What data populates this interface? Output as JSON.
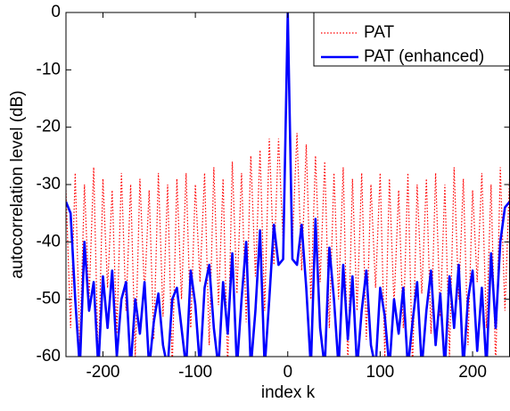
{
  "chart_data": {
    "type": "line",
    "xlabel": "index k",
    "ylabel": "autocorrelation level (dB)",
    "xlim": [
      -240,
      240
    ],
    "ylim": [
      -60,
      0
    ],
    "xticks": [
      -200,
      -100,
      0,
      100,
      200
    ],
    "yticks": [
      0,
      -10,
      -20,
      -30,
      -40,
      -50,
      -60
    ],
    "legend": "upper right",
    "x": [
      -240,
      -235,
      -230,
      -225,
      -220,
      -215,
      -210,
      -205,
      -200,
      -195,
      -190,
      -185,
      -180,
      -175,
      -170,
      -165,
      -160,
      -155,
      -150,
      -145,
      -140,
      -135,
      -130,
      -125,
      -120,
      -115,
      -110,
      -105,
      -100,
      -95,
      -90,
      -85,
      -80,
      -75,
      -70,
      -65,
      -60,
      -55,
      -50,
      -45,
      -40,
      -35,
      -30,
      -25,
      -20,
      -15,
      -10,
      -5,
      0,
      5,
      10,
      15,
      20,
      25,
      30,
      35,
      40,
      45,
      50,
      55,
      60,
      65,
      70,
      75,
      80,
      85,
      90,
      95,
      100,
      105,
      110,
      115,
      120,
      125,
      130,
      135,
      140,
      145,
      150,
      155,
      160,
      165,
      170,
      175,
      180,
      185,
      190,
      195,
      200,
      205,
      210,
      215,
      220,
      225,
      230,
      235,
      240
    ],
    "series": [
      {
        "name": "PAT",
        "color": "#ff0000",
        "style": "dotted",
        "values": [
          -31,
          -55,
          -28,
          -58,
          -30,
          -50,
          -27,
          -62,
          -29,
          -48,
          -31,
          -56,
          -28,
          -52,
          -30,
          -60,
          -29,
          -49,
          -31,
          -57,
          -28,
          -53,
          -30,
          -62,
          -29,
          -50,
          -28,
          -55,
          -30,
          -47,
          -28,
          -58,
          -27,
          -51,
          -29,
          -62,
          -26,
          -49,
          -28,
          -54,
          -25,
          -46,
          -24,
          -52,
          -22,
          -44,
          -22,
          -40,
          0,
          -40,
          -21,
          -45,
          -23,
          -50,
          -25,
          -47,
          -26,
          -55,
          -28,
          -50,
          -27,
          -62,
          -29,
          -52,
          -28,
          -57,
          -30,
          -48,
          -28,
          -60,
          -29,
          -51,
          -31,
          -55,
          -28,
          -62,
          -30,
          -49,
          -29,
          -56,
          -28,
          -53,
          -30,
          -60,
          -27,
          -50,
          -29,
          -58,
          -31,
          -47,
          -28,
          -55,
          -30,
          -62,
          -27,
          -52,
          -29
        ]
      },
      {
        "name": "PAT (enhanced)",
        "color": "#0000ff",
        "style": "solid",
        "values": [
          -33,
          -35,
          -50,
          -62,
          -40,
          -52,
          -47,
          -62,
          -46,
          -55,
          -45,
          -60,
          -50,
          -47,
          -62,
          -50,
          -56,
          -47,
          -62,
          -54,
          -49,
          -58,
          -62,
          -50,
          -48,
          -55,
          -62,
          -45,
          -51,
          -62,
          -48,
          -44,
          -55,
          -62,
          -47,
          -56,
          -42,
          -62,
          -50,
          -40,
          -62,
          -52,
          -38,
          -62,
          -50,
          -37,
          -44,
          -43,
          0,
          -43,
          -44,
          -37,
          -48,
          -62,
          -36,
          -55,
          -62,
          -41,
          -50,
          -62,
          -44,
          -57,
          -46,
          -62,
          -52,
          -45,
          -58,
          -62,
          -48,
          -53,
          -62,
          -50,
          -56,
          -48,
          -62,
          -54,
          -47,
          -62,
          -52,
          -45,
          -58,
          -49,
          -62,
          -46,
          -55,
          -44,
          -62,
          -50,
          -45,
          -59,
          -48,
          -62,
          -42,
          -55,
          -40,
          -34,
          -33
        ]
      }
    ]
  }
}
